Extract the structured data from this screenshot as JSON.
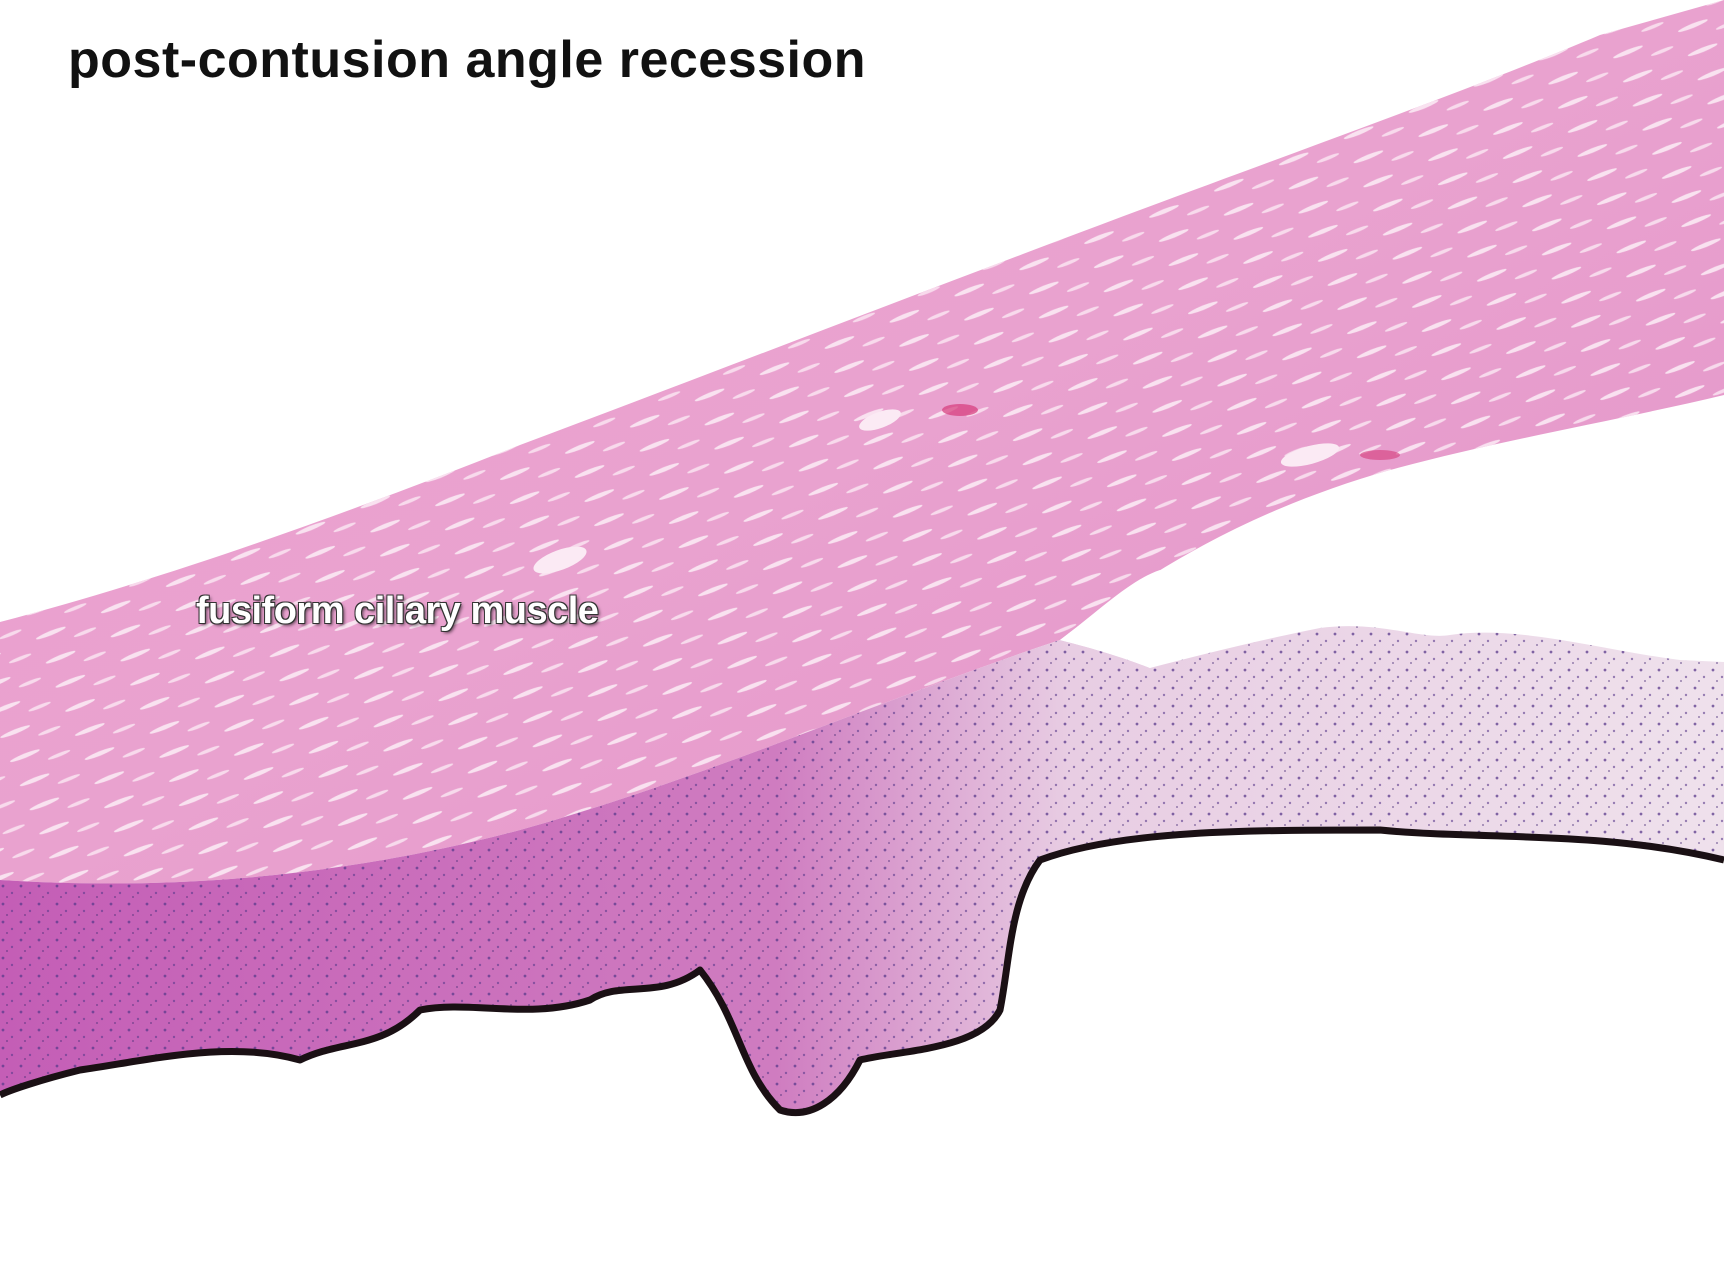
{
  "title": "post-contusion angle recession",
  "labels": {
    "ciliary_muscle": "fusiform ciliary muscle"
  },
  "image": {
    "stain": "hematoxylin and eosin",
    "colors": {
      "background": "#ffffff",
      "muscle": "#e79ac9",
      "muscle_light": "#f1b7da",
      "dense_stroma": "#c56bb8",
      "pale_stroma": "#ead7e6",
      "pigment": "#1a1014",
      "nuclei": "#5a3a8c",
      "fiber_streak": "#fbe9f4"
    }
  }
}
